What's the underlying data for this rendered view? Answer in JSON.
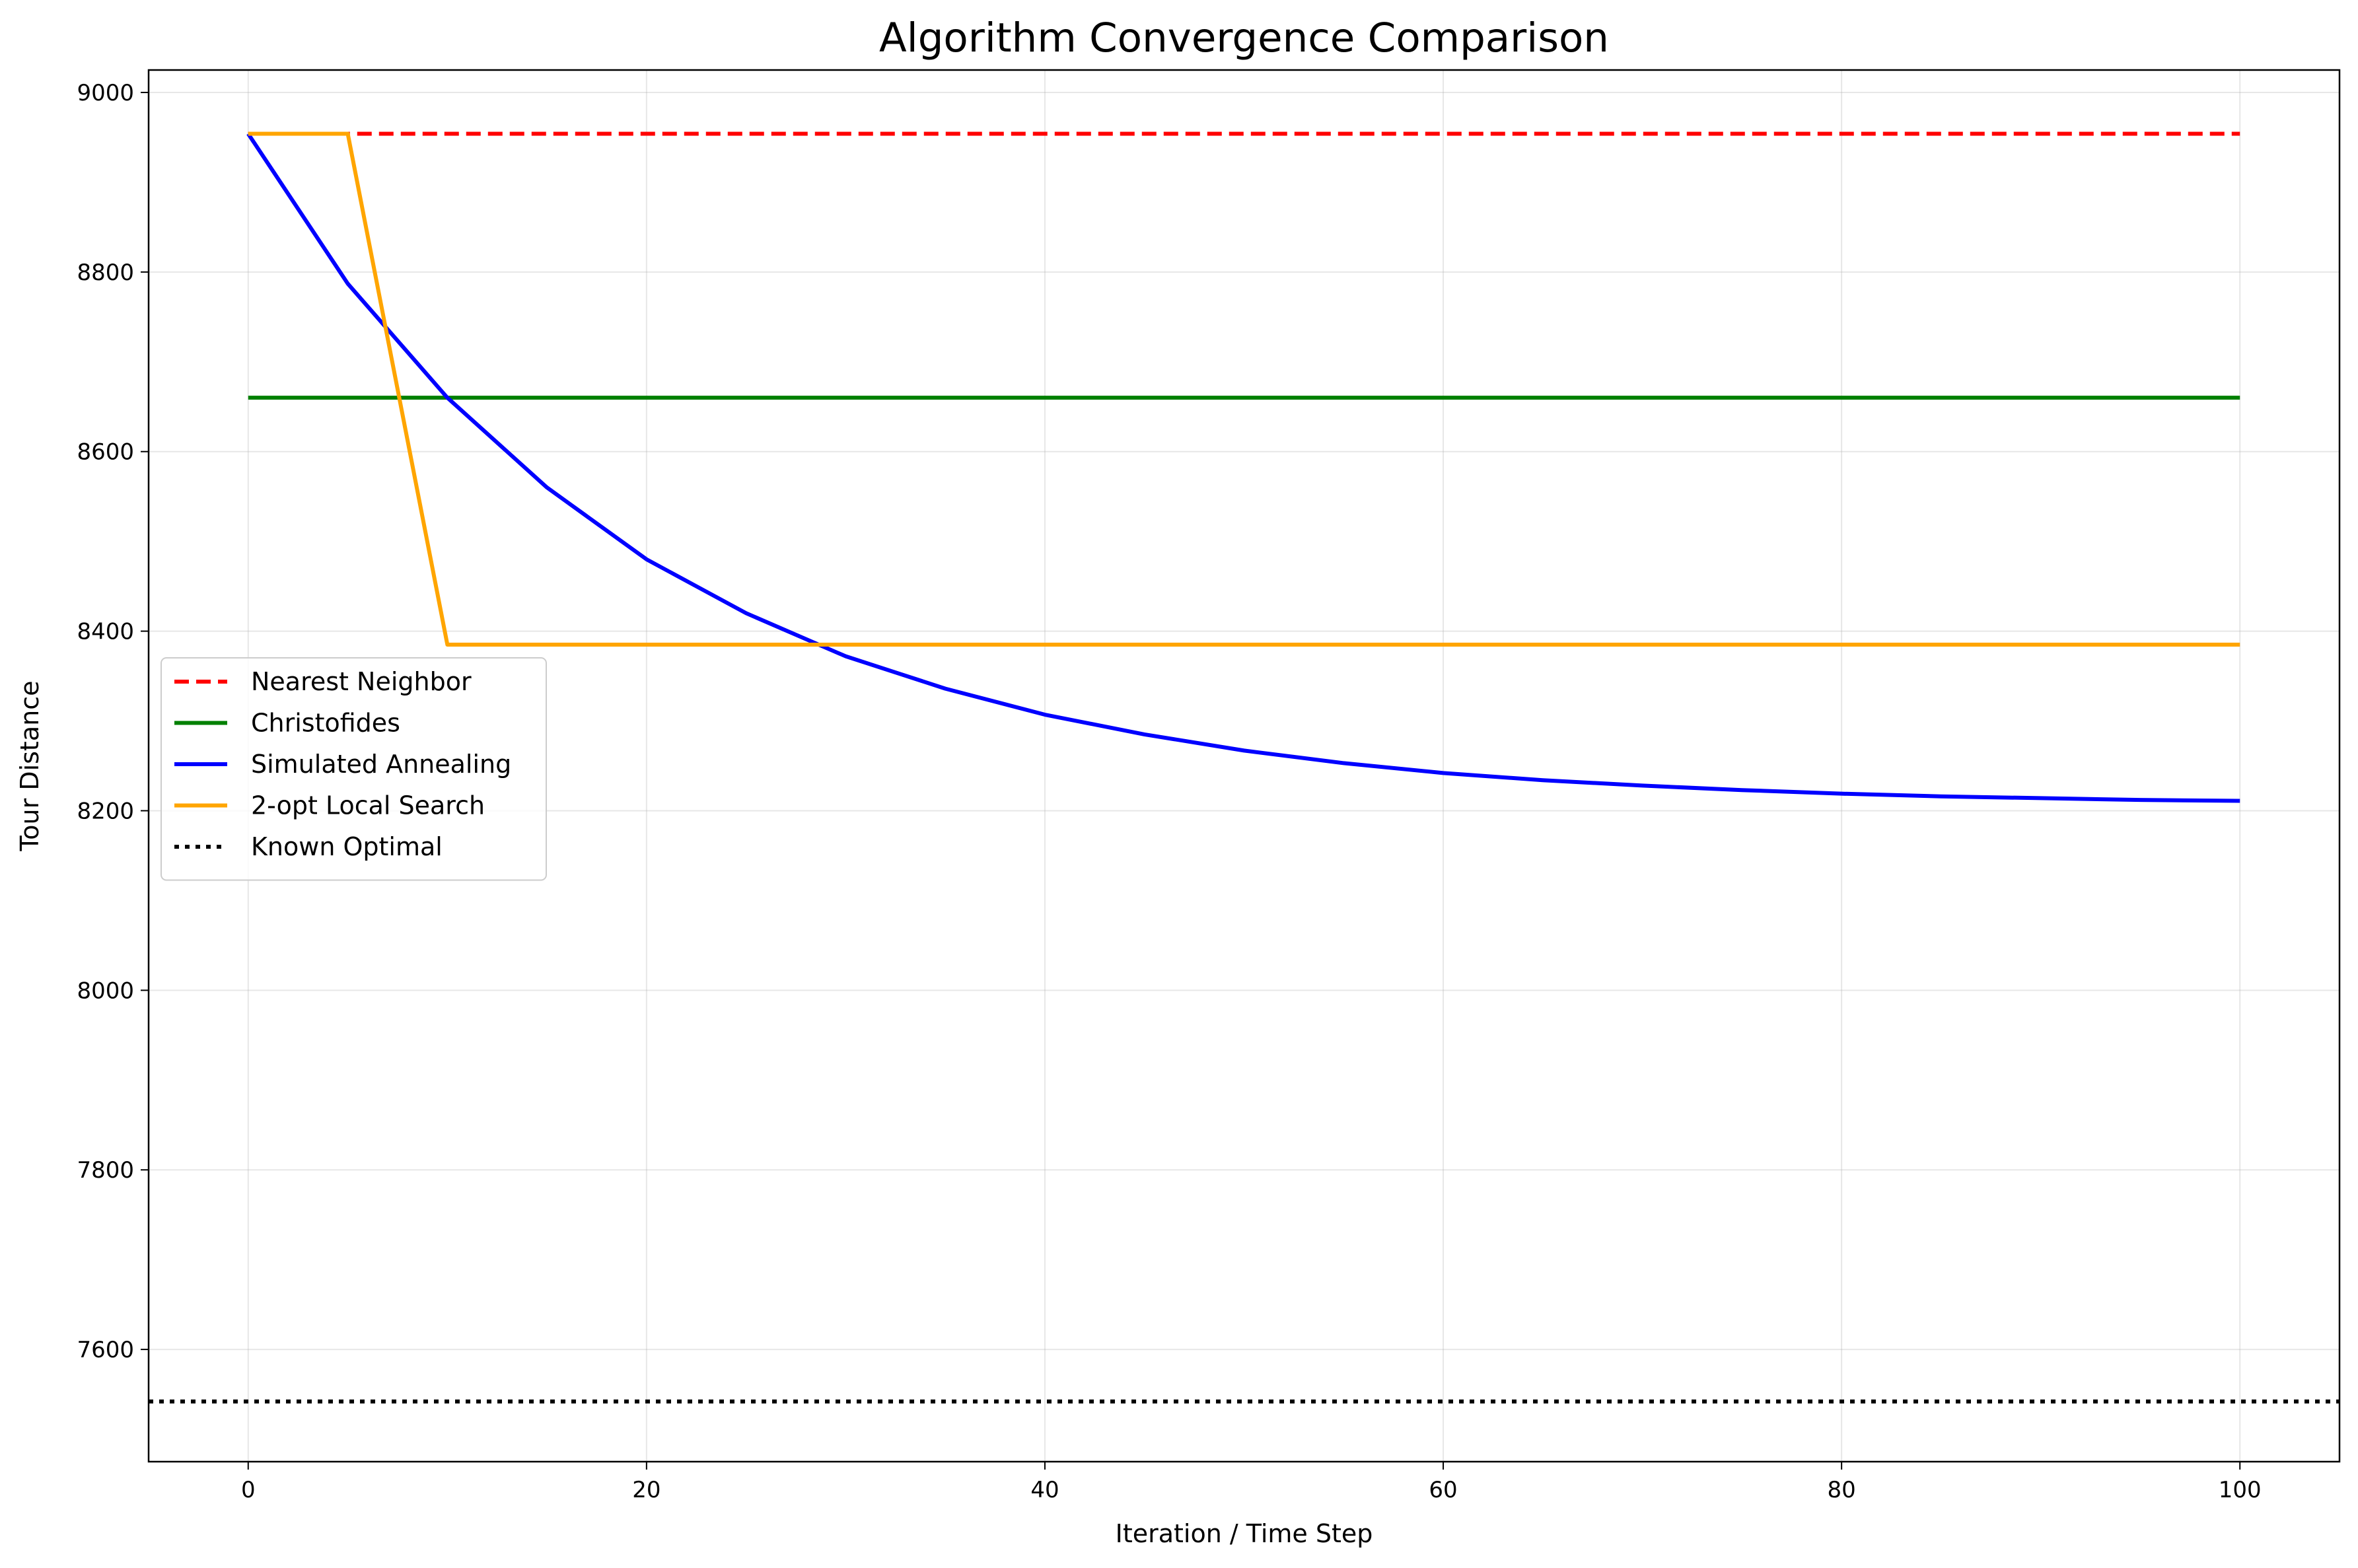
{
  "chart_data": {
    "type": "line",
    "title": "Algorithm Convergence Comparison",
    "xlabel": "Iteration / Time Step",
    "ylabel": "Tour Distance",
    "xlim": [
      -5,
      105
    ],
    "ylim": [
      7475,
      9025
    ],
    "xticks": [
      0,
      20,
      40,
      60,
      80,
      100
    ],
    "yticks": [
      7600,
      7800,
      8000,
      8200,
      8400,
      8600,
      8800,
      9000
    ],
    "grid": true,
    "legend_position": "center-left",
    "series": [
      {
        "name": "Nearest Neighbor",
        "color": "#ff0000",
        "style": "dashed",
        "x": [
          0,
          100
        ],
        "y": [
          8954,
          8954
        ]
      },
      {
        "name": "Christofides",
        "color": "#008000",
        "style": "solid",
        "x": [
          0,
          100
        ],
        "y": [
          8660,
          8660
        ]
      },
      {
        "name": "Simulated Annealing",
        "color": "#0000ff",
        "style": "solid",
        "x": [
          0,
          5,
          10,
          15,
          20,
          25,
          30,
          35,
          40,
          45,
          50,
          55,
          60,
          65,
          70,
          75,
          80,
          85,
          90,
          95,
          100
        ],
        "y": [
          8954,
          8787,
          8660,
          8560,
          8480,
          8420,
          8372,
          8336,
          8307,
          8285,
          8267,
          8253,
          8242,
          8234,
          8228,
          8223,
          8219,
          8216,
          8214,
          8212,
          8211
        ]
      },
      {
        "name": "2-opt Local Search",
        "color": "#ffa500",
        "style": "solid",
        "x": [
          0,
          5,
          10,
          100
        ],
        "y": [
          8954,
          8954,
          8385,
          8385
        ]
      },
      {
        "name": "Known Optimal",
        "color": "#000000",
        "style": "dotted",
        "x": [
          -5,
          105
        ],
        "y": [
          7542,
          7542
        ]
      }
    ]
  }
}
